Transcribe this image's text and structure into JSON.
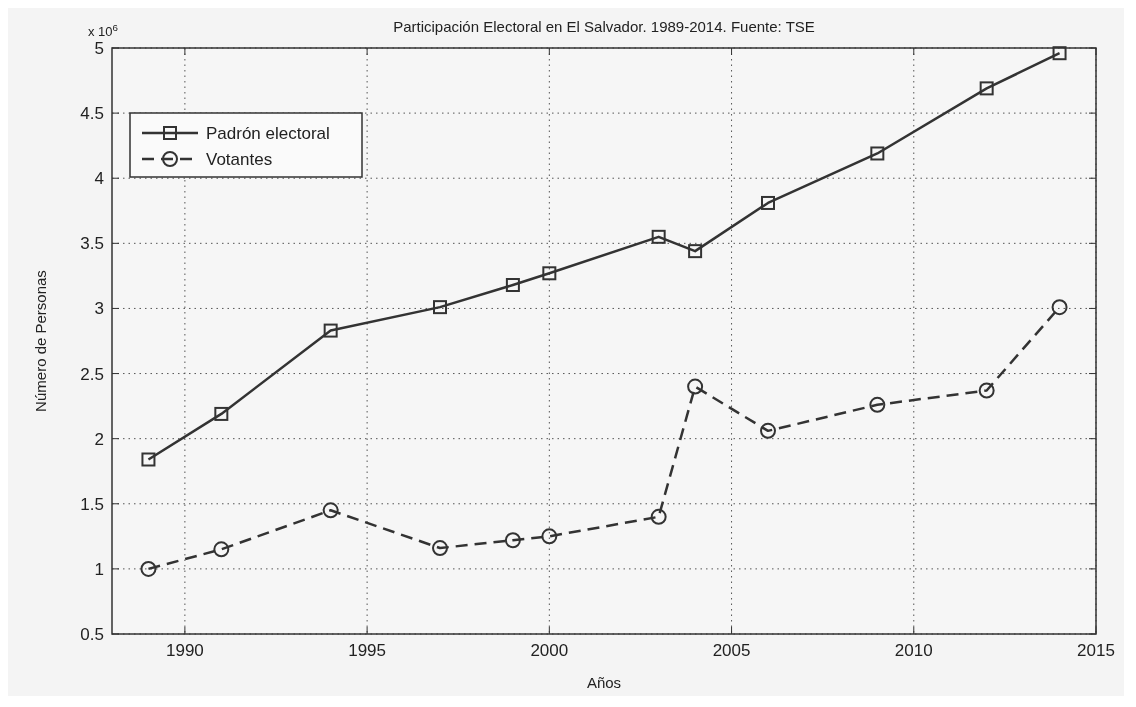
{
  "chart_data": {
    "type": "line",
    "title": "Participación Electoral en El Salvador. 1989-2014. Fuente: TSE",
    "xlabel": "Años",
    "ylabel": "Número de Personas",
    "annotations": [
      "x 10$^{6}$"
    ],
    "x": [
      1989,
      1991,
      1994,
      1997,
      1999,
      2000,
      2003,
      2004,
      2006,
      2009,
      2012,
      2014
    ],
    "series": [
      {
        "name": "Padrón electoral",
        "color": "#333333",
        "marker": "square",
        "line_style": "solid",
        "values": [
          1.84,
          2.19,
          2.83,
          3.01,
          3.18,
          3.27,
          3.55,
          3.44,
          3.81,
          4.19,
          4.69,
          4.96
        ]
      },
      {
        "name": "Votantes",
        "color": "#333333",
        "marker": "circle",
        "line_style": "dashed",
        "values": [
          1.0,
          1.15,
          1.45,
          1.16,
          1.22,
          1.25,
          1.4,
          2.4,
          2.06,
          2.26,
          2.37,
          3.01
        ]
      }
    ],
    "xlim": [
      1988,
      2015
    ],
    "xticks": [
      1990,
      1995,
      2000,
      2005,
      2010,
      2015
    ],
    "ylim": [
      0.5,
      5
    ],
    "yticks": [
      0.5,
      1,
      1.5,
      2,
      2.5,
      3,
      3.5,
      4,
      4.5,
      5
    ],
    "grid": true,
    "legend": "top left"
  }
}
